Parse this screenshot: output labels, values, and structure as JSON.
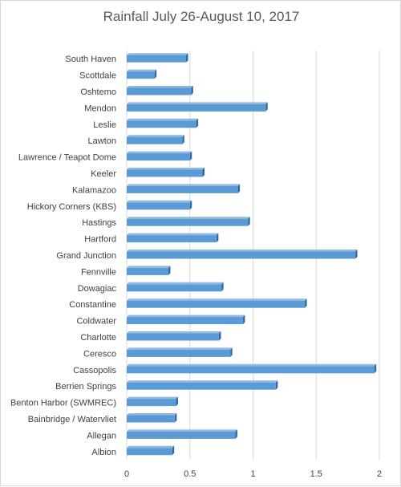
{
  "chart_data": {
    "type": "bar",
    "orientation": "horizontal",
    "title": "Rainfall July 26-August 10, 2017",
    "xlabel": "",
    "ylabel": "",
    "xlim": [
      0,
      2
    ],
    "x_ticks": [
      "0",
      "0.5",
      "1",
      "1.5",
      "2"
    ],
    "grid": true,
    "legend": "none",
    "bar_color": "#5b9bd5",
    "categories": [
      "South Haven",
      "Scottdale",
      "Oshtemo",
      "Mendon",
      "Leslie",
      "Lawton",
      "Lawrence / Teapot Dome",
      "Keeler",
      "Kalamazoo",
      "Hickory Corners (KBS)",
      "Hastings",
      "Hartford",
      "Grand Junction",
      "Fennville",
      "Dowagiac",
      "Constantine",
      "Coldwater",
      "Charlotte",
      "Ceresco",
      "Cassopolis",
      "Berrien Springs",
      "Benton Harbor (SWMREC)",
      "Bainbridge / Watervliet",
      "Allegan",
      "Albion"
    ],
    "values": [
      0.47,
      0.22,
      0.51,
      1.1,
      0.55,
      0.44,
      0.5,
      0.6,
      0.88,
      0.5,
      0.96,
      0.71,
      1.81,
      0.33,
      0.75,
      1.41,
      0.92,
      0.73,
      0.82,
      1.96,
      1.18,
      0.39,
      0.38,
      0.86,
      0.36
    ]
  }
}
